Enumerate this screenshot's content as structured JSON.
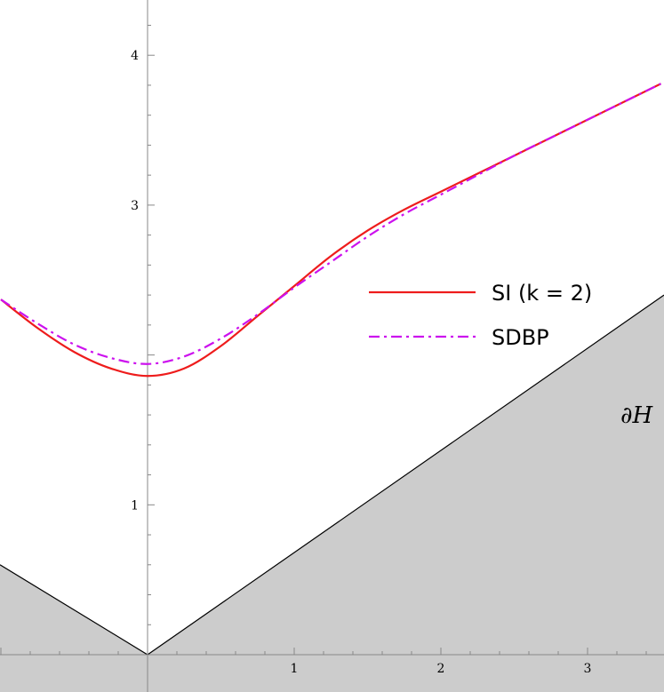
{
  "chart_data": {
    "type": "line",
    "xlim": [
      -1.0,
      3.5
    ],
    "ylim": [
      -0.25,
      4.35
    ],
    "x_ticks": [
      {
        "value": 1,
        "label": "1"
      },
      {
        "value": 2,
        "label": "2"
      },
      {
        "value": 3,
        "label": "3"
      }
    ],
    "y_ticks": [
      {
        "value": 1,
        "label": "1"
      },
      {
        "value": 3,
        "label": "3"
      },
      {
        "value": 4,
        "label": "4"
      }
    ],
    "series": [
      {
        "name": "SI (k = 2)",
        "color": "#ee1c1c",
        "style": "solid",
        "x": [
          -1.0,
          -0.75,
          -0.5,
          -0.25,
          0.0,
          0.25,
          0.5,
          0.75,
          1.0,
          1.25,
          1.5,
          1.75,
          2.0,
          2.25,
          2.5,
          2.75,
          3.0,
          3.25,
          3.5
        ],
        "y": [
          2.37,
          2.18,
          2.02,
          1.91,
          1.86,
          1.91,
          2.06,
          2.26,
          2.46,
          2.66,
          2.83,
          2.97,
          3.09,
          3.21,
          3.33,
          3.45,
          3.57,
          3.69,
          3.81
        ]
      },
      {
        "name": "SDBP",
        "color": "#cc11ee",
        "style": "dashdot",
        "x": [
          -1.0,
          -0.75,
          -0.5,
          -0.25,
          0.0,
          0.25,
          0.5,
          0.75,
          1.0,
          1.25,
          1.5,
          1.75,
          2.0,
          2.25,
          2.5,
          2.75,
          3.0,
          3.25,
          3.5
        ],
        "y": [
          2.37,
          2.21,
          2.07,
          1.98,
          1.94,
          1.99,
          2.11,
          2.27,
          2.45,
          2.62,
          2.79,
          2.94,
          3.07,
          3.2,
          3.33,
          3.45,
          3.57,
          3.69,
          3.81
        ]
      }
    ],
    "region": {
      "label": "∂H",
      "fill": "#cccccc",
      "boundary_left_slope": -0.6,
      "boundary_right_slope": 0.6857
    },
    "legend": {
      "position": "right",
      "entries": [
        {
          "label": "SI (k = 2)",
          "color": "#ee1c1c",
          "style": "solid"
        },
        {
          "label": "SDBP",
          "color": "#cc11ee",
          "style": "dashdot"
        }
      ]
    },
    "grid": false
  }
}
